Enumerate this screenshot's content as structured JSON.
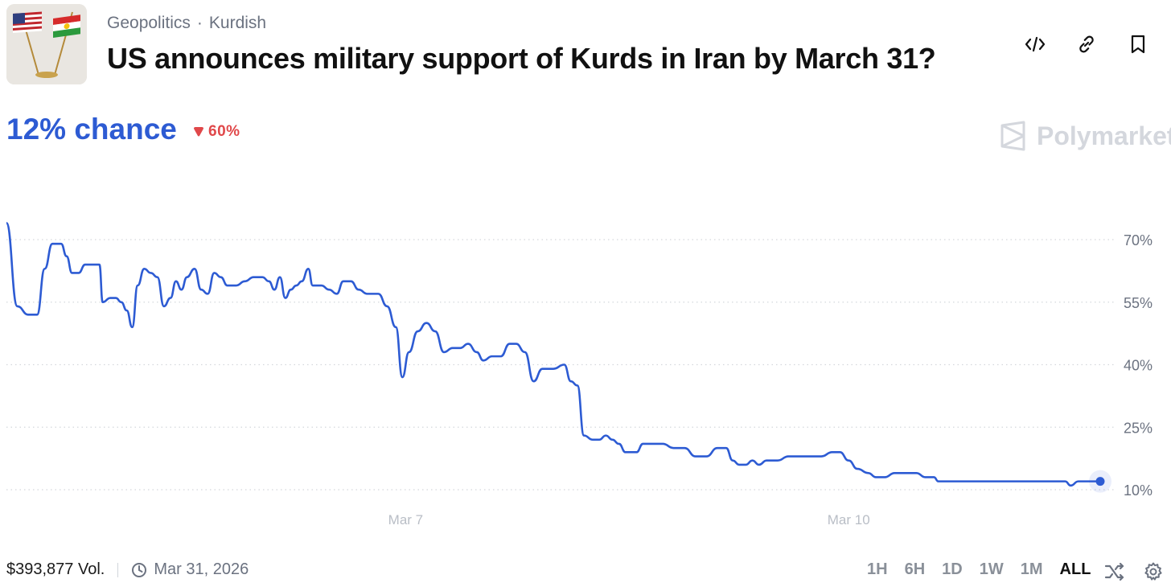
{
  "header": {
    "category": "Geopolitics",
    "subcategory": "Kurdish",
    "title": "US announces military support of Kurds in Iran by March 31?",
    "thumbnail_icon": "us-kurdistan-flags-icon"
  },
  "actions": [
    {
      "name": "embed-button",
      "icon": "code-icon"
    },
    {
      "name": "copy-link-button",
      "icon": "link-icon"
    },
    {
      "name": "bookmark-button",
      "icon": "bookmark-icon"
    }
  ],
  "probability": {
    "chance_label": "12% chance",
    "change_label": "60%",
    "change_direction": "down",
    "change_color": "#e0484a"
  },
  "brand": {
    "name": "Polymarket",
    "icon": "polymarket-logo-icon"
  },
  "chart_data": {
    "type": "line",
    "title": "",
    "xlabel": "",
    "ylabel": "",
    "color": "#2d5bd3",
    "y_ticks": [
      70,
      55,
      40,
      25,
      10
    ],
    "y_tick_labels": [
      "70%",
      "55%",
      "40%",
      "25%",
      "10%"
    ],
    "ylim": [
      10,
      70
    ],
    "x_ticks": [
      {
        "label": "Mar 7",
        "t": 0.365
      },
      {
        "label": "Mar 10",
        "t": 0.77
      }
    ],
    "grid": true,
    "series": [
      {
        "points": [
          [
            0.0,
            74
          ],
          [
            0.01,
            54
          ],
          [
            0.02,
            52
          ],
          [
            0.028,
            52
          ],
          [
            0.035,
            63
          ],
          [
            0.042,
            69
          ],
          [
            0.05,
            69
          ],
          [
            0.055,
            66
          ],
          [
            0.06,
            62
          ],
          [
            0.066,
            62
          ],
          [
            0.072,
            64
          ],
          [
            0.08,
            64
          ],
          [
            0.085,
            64
          ],
          [
            0.088,
            55
          ],
          [
            0.095,
            56
          ],
          [
            0.1,
            56
          ],
          [
            0.105,
            55
          ],
          [
            0.11,
            53
          ],
          [
            0.115,
            49
          ],
          [
            0.12,
            59
          ],
          [
            0.126,
            63
          ],
          [
            0.132,
            62
          ],
          [
            0.138,
            61
          ],
          [
            0.144,
            54
          ],
          [
            0.15,
            56
          ],
          [
            0.155,
            60
          ],
          [
            0.16,
            58
          ],
          [
            0.165,
            61
          ],
          [
            0.172,
            63
          ],
          [
            0.178,
            58
          ],
          [
            0.184,
            57
          ],
          [
            0.19,
            62
          ],
          [
            0.196,
            61
          ],
          [
            0.202,
            59
          ],
          [
            0.21,
            59
          ],
          [
            0.218,
            60
          ],
          [
            0.226,
            61
          ],
          [
            0.234,
            61
          ],
          [
            0.24,
            60
          ],
          [
            0.245,
            58
          ],
          [
            0.25,
            61
          ],
          [
            0.255,
            56
          ],
          [
            0.26,
            58
          ],
          [
            0.265,
            59
          ],
          [
            0.27,
            60
          ],
          [
            0.276,
            63
          ],
          [
            0.28,
            59
          ],
          [
            0.288,
            59
          ],
          [
            0.295,
            58
          ],
          [
            0.302,
            57
          ],
          [
            0.308,
            60
          ],
          [
            0.315,
            60
          ],
          [
            0.322,
            58
          ],
          [
            0.33,
            57
          ],
          [
            0.34,
            57
          ],
          [
            0.348,
            54
          ],
          [
            0.356,
            49
          ],
          [
            0.362,
            37
          ],
          [
            0.368,
            43
          ],
          [
            0.376,
            48
          ],
          [
            0.384,
            50
          ],
          [
            0.392,
            48
          ],
          [
            0.4,
            43
          ],
          [
            0.408,
            44
          ],
          [
            0.415,
            44
          ],
          [
            0.422,
            45
          ],
          [
            0.43,
            43
          ],
          [
            0.436,
            41
          ],
          [
            0.444,
            42
          ],
          [
            0.452,
            42
          ],
          [
            0.46,
            45
          ],
          [
            0.466,
            45
          ],
          [
            0.474,
            43
          ],
          [
            0.482,
            36
          ],
          [
            0.49,
            39
          ],
          [
            0.5,
            39
          ],
          [
            0.51,
            40
          ],
          [
            0.516,
            36
          ],
          [
            0.522,
            35
          ],
          [
            0.528,
            23
          ],
          [
            0.536,
            22
          ],
          [
            0.542,
            22
          ],
          [
            0.548,
            23
          ],
          [
            0.554,
            22
          ],
          [
            0.56,
            21
          ],
          [
            0.566,
            19
          ],
          [
            0.576,
            19
          ],
          [
            0.582,
            21
          ],
          [
            0.59,
            21
          ],
          [
            0.6,
            21
          ],
          [
            0.61,
            20
          ],
          [
            0.62,
            20
          ],
          [
            0.63,
            18
          ],
          [
            0.64,
            18
          ],
          [
            0.65,
            20
          ],
          [
            0.658,
            20
          ],
          [
            0.664,
            17
          ],
          [
            0.67,
            16
          ],
          [
            0.676,
            16
          ],
          [
            0.682,
            17
          ],
          [
            0.688,
            16
          ],
          [
            0.695,
            17
          ],
          [
            0.705,
            17
          ],
          [
            0.715,
            18
          ],
          [
            0.725,
            18
          ],
          [
            0.735,
            18
          ],
          [
            0.745,
            18
          ],
          [
            0.755,
            19
          ],
          [
            0.762,
            19
          ],
          [
            0.77,
            17
          ],
          [
            0.778,
            15
          ],
          [
            0.788,
            14
          ],
          [
            0.795,
            13
          ],
          [
            0.803,
            13
          ],
          [
            0.812,
            14
          ],
          [
            0.822,
            14
          ],
          [
            0.832,
            14
          ],
          [
            0.84,
            13
          ],
          [
            0.848,
            13
          ],
          [
            0.852,
            12
          ],
          [
            0.862,
            12
          ],
          [
            0.872,
            12
          ],
          [
            0.882,
            12
          ],
          [
            0.892,
            12
          ],
          [
            0.9,
            12
          ],
          [
            0.91,
            12
          ],
          [
            0.92,
            12
          ],
          [
            0.93,
            12
          ],
          [
            0.94,
            12
          ],
          [
            0.95,
            12
          ],
          [
            0.96,
            12
          ],
          [
            0.968,
            12
          ],
          [
            0.973,
            11
          ],
          [
            0.98,
            12
          ],
          [
            0.99,
            12
          ],
          [
            1.0,
            12
          ]
        ]
      }
    ]
  },
  "footer": {
    "volume": "$393,877 Vol.",
    "end_date": "Mar 31, 2026",
    "clock_icon": "clock-icon"
  },
  "ranges": [
    {
      "label": "1H",
      "active": false
    },
    {
      "label": "6H",
      "active": false
    },
    {
      "label": "1D",
      "active": false
    },
    {
      "label": "1W",
      "active": false
    },
    {
      "label": "1M",
      "active": false
    },
    {
      "label": "ALL",
      "active": true
    }
  ],
  "tools": [
    {
      "name": "shuffle-button",
      "icon": "shuffle-icon"
    },
    {
      "name": "settings-button",
      "icon": "gear-icon"
    }
  ]
}
